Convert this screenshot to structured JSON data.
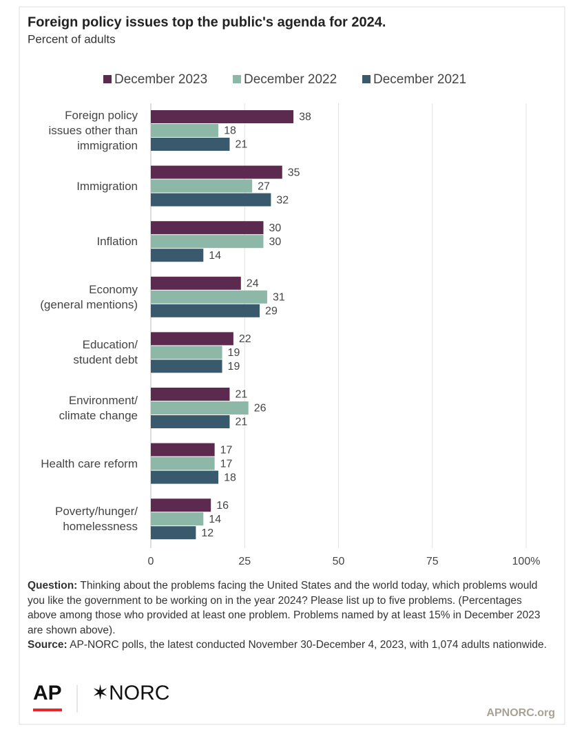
{
  "chart_data": {
    "type": "hbar",
    "title": "Foreign policy issues top the public's agenda for 2024.",
    "subtitle": "Percent of adults",
    "categories": [
      "Foreign policy\nissues other than\nimmigration",
      "Immigration",
      "Inflation",
      "Economy\n(general mentions)",
      "Education/\nstudent debt",
      "Environment/\nclimate change",
      "Health care reform",
      "Poverty/hunger/\nhomelessness"
    ],
    "series": [
      {
        "name": "December 2023",
        "color": "#5c2a4f",
        "values": [
          38,
          35,
          30,
          24,
          22,
          21,
          17,
          16
        ]
      },
      {
        "name": "December 2022",
        "color": "#8db8a8",
        "values": [
          18,
          27,
          30,
          31,
          19,
          26,
          17,
          14
        ]
      },
      {
        "name": "December 2021",
        "color": "#395a6d",
        "values": [
          21,
          32,
          14,
          29,
          19,
          21,
          18,
          12
        ]
      }
    ],
    "xlim": [
      0,
      100
    ],
    "xticks": [
      0,
      25,
      50,
      75,
      {
        "value": 100,
        "label": "100%"
      }
    ],
    "grid": true,
    "legend": "top"
  },
  "notes": {
    "question_label": "Question:",
    "question": "Thinking about the problems facing the United States and the world today, which problems would you like the government to be working on in the year 2024? Please list up to five problems. (Percentages above among those who provided at least one problem. Problems named by at least 15% in December 2023 are shown above).",
    "source_label": "Source:",
    "source": "AP-NORC polls, the latest conducted November 30-December 4, 2023, with 1,074 adults nationwide."
  },
  "logos": {
    "ap": "AP",
    "norc": "✶NORC",
    "site": "APNORC.org"
  }
}
